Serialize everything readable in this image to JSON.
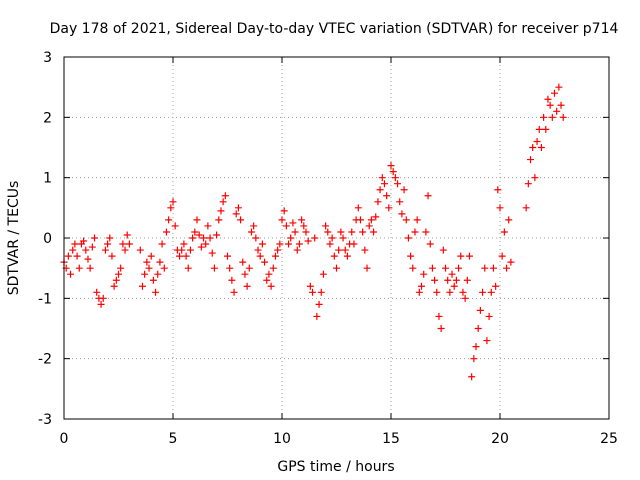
{
  "chart_data": {
    "type": "scatter",
    "title": "Day 178 of 2021, Sidereal Day-to-day VTEC variation (SDTVAR) for receiver p714",
    "xlabel": "GPS time / hours",
    "ylabel": "SDTVAR / TECUs",
    "xlim": [
      0,
      25
    ],
    "ylim": [
      -3,
      3
    ],
    "xticks": [
      "0",
      "5",
      "10",
      "15",
      "20",
      "25"
    ],
    "yticks": [
      "-3",
      "-2",
      "-1",
      "0",
      "1",
      "2",
      "3"
    ],
    "grid": true,
    "marker": "plus",
    "color": "#ff0000",
    "series": [
      {
        "name": "SDTVAR",
        "points": [
          [
            0.0,
            -0.4
          ],
          [
            0.1,
            -0.5
          ],
          [
            0.2,
            -0.3
          ],
          [
            0.3,
            -0.6
          ],
          [
            0.4,
            -0.2
          ],
          [
            0.5,
            -0.1
          ],
          [
            0.6,
            -0.3
          ],
          [
            0.7,
            -0.5
          ],
          [
            0.8,
            -0.1
          ],
          [
            0.9,
            -0.05
          ],
          [
            1.0,
            -0.2
          ],
          [
            1.1,
            -0.35
          ],
          [
            1.2,
            -0.5
          ],
          [
            1.3,
            -0.15
          ],
          [
            1.4,
            0.0
          ],
          [
            1.5,
            -0.9
          ],
          [
            1.6,
            -1.0
          ],
          [
            1.7,
            -1.1
          ],
          [
            1.8,
            -1.0
          ],
          [
            1.9,
            -0.2
          ],
          [
            2.0,
            -0.1
          ],
          [
            2.1,
            0.0
          ],
          [
            2.2,
            -0.3
          ],
          [
            2.3,
            -0.8
          ],
          [
            2.4,
            -0.7
          ],
          [
            2.5,
            -0.6
          ],
          [
            2.6,
            -0.5
          ],
          [
            2.7,
            -0.1
          ],
          [
            2.8,
            -0.2
          ],
          [
            2.9,
            0.05
          ],
          [
            3.0,
            -0.1
          ],
          [
            3.5,
            -0.2
          ],
          [
            3.6,
            -0.8
          ],
          [
            3.7,
            -0.6
          ],
          [
            3.8,
            -0.4
          ],
          [
            3.9,
            -0.5
          ],
          [
            4.0,
            -0.3
          ],
          [
            4.1,
            -0.7
          ],
          [
            4.2,
            -0.9
          ],
          [
            4.3,
            -0.6
          ],
          [
            4.4,
            -0.4
          ],
          [
            4.5,
            -0.1
          ],
          [
            4.6,
            -0.5
          ],
          [
            4.7,
            0.1
          ],
          [
            4.8,
            0.3
          ],
          [
            4.9,
            0.5
          ],
          [
            5.0,
            0.6
          ],
          [
            5.1,
            0.2
          ],
          [
            5.2,
            -0.2
          ],
          [
            5.3,
            -0.3
          ],
          [
            5.4,
            -0.2
          ],
          [
            5.5,
            -0.1
          ],
          [
            5.6,
            -0.3
          ],
          [
            5.7,
            -0.5
          ],
          [
            5.8,
            -0.2
          ],
          [
            5.9,
            0.0
          ],
          [
            6.0,
            0.1
          ],
          [
            6.1,
            0.3
          ],
          [
            6.2,
            0.05
          ],
          [
            6.3,
            -0.15
          ],
          [
            6.4,
            0.0
          ],
          [
            6.5,
            -0.1
          ],
          [
            6.6,
            0.2
          ],
          [
            6.7,
            0.0
          ],
          [
            6.8,
            -0.25
          ],
          [
            6.9,
            -0.5
          ],
          [
            7.0,
            0.05
          ],
          [
            7.1,
            0.3
          ],
          [
            7.2,
            0.45
          ],
          [
            7.3,
            0.6
          ],
          [
            7.4,
            0.7
          ],
          [
            7.5,
            -0.3
          ],
          [
            7.6,
            -0.5
          ],
          [
            7.7,
            -0.7
          ],
          [
            7.8,
            -0.9
          ],
          [
            7.9,
            0.4
          ],
          [
            8.0,
            0.5
          ],
          [
            8.1,
            0.3
          ],
          [
            8.2,
            -0.4
          ],
          [
            8.3,
            -0.6
          ],
          [
            8.4,
            -0.8
          ],
          [
            8.5,
            -0.5
          ],
          [
            8.6,
            0.1
          ],
          [
            8.7,
            0.2
          ],
          [
            8.8,
            0.0
          ],
          [
            8.9,
            -0.2
          ],
          [
            9.0,
            -0.3
          ],
          [
            9.1,
            -0.1
          ],
          [
            9.2,
            -0.4
          ],
          [
            9.3,
            -0.7
          ],
          [
            9.4,
            -0.6
          ],
          [
            9.5,
            -0.8
          ],
          [
            9.6,
            -0.5
          ],
          [
            9.7,
            -0.3
          ],
          [
            9.8,
            -0.2
          ],
          [
            9.9,
            -0.1
          ],
          [
            10.0,
            0.3
          ],
          [
            10.1,
            0.45
          ],
          [
            10.2,
            0.2
          ],
          [
            10.3,
            -0.1
          ],
          [
            10.4,
            0.0
          ],
          [
            10.5,
            0.25
          ],
          [
            10.6,
            0.1
          ],
          [
            10.7,
            -0.2
          ],
          [
            10.8,
            -0.1
          ],
          [
            10.9,
            0.3
          ],
          [
            11.0,
            0.2
          ],
          [
            11.1,
            0.1
          ],
          [
            11.2,
            -0.05
          ],
          [
            11.3,
            -0.8
          ],
          [
            11.4,
            -0.9
          ],
          [
            11.5,
            0.0
          ],
          [
            11.6,
            -1.3
          ],
          [
            11.7,
            -1.1
          ],
          [
            11.8,
            -0.9
          ],
          [
            11.9,
            -0.6
          ],
          [
            12.0,
            0.2
          ],
          [
            12.1,
            0.1
          ],
          [
            12.2,
            -0.1
          ],
          [
            12.3,
            0.0
          ],
          [
            12.4,
            -0.3
          ],
          [
            12.5,
            -0.5
          ],
          [
            12.6,
            -0.2
          ],
          [
            12.7,
            0.1
          ],
          [
            12.8,
            0.0
          ],
          [
            12.9,
            -0.2
          ],
          [
            13.0,
            -0.3
          ],
          [
            13.1,
            -0.1
          ],
          [
            13.2,
            0.1
          ],
          [
            13.3,
            -0.1
          ],
          [
            13.4,
            0.3
          ],
          [
            13.5,
            0.5
          ],
          [
            13.6,
            0.3
          ],
          [
            13.7,
            0.1
          ],
          [
            13.8,
            -0.2
          ],
          [
            13.9,
            -0.5
          ],
          [
            14.0,
            0.2
          ],
          [
            14.1,
            0.3
          ],
          [
            14.2,
            0.1
          ],
          [
            14.3,
            0.35
          ],
          [
            14.4,
            0.6
          ],
          [
            14.5,
            0.8
          ],
          [
            14.6,
            1.0
          ],
          [
            14.7,
            0.9
          ],
          [
            14.8,
            0.7
          ],
          [
            14.9,
            0.5
          ],
          [
            15.0,
            1.2
          ],
          [
            15.1,
            1.1
          ],
          [
            15.2,
            1.0
          ],
          [
            15.3,
            0.9
          ],
          [
            15.4,
            0.6
          ],
          [
            15.5,
            0.4
          ],
          [
            15.6,
            0.8
          ],
          [
            15.7,
            0.3
          ],
          [
            15.8,
            0.0
          ],
          [
            15.9,
            -0.3
          ],
          [
            16.0,
            -0.5
          ],
          [
            16.1,
            0.1
          ],
          [
            16.2,
            0.3
          ],
          [
            16.3,
            -0.9
          ],
          [
            16.4,
            -0.8
          ],
          [
            16.5,
            -0.6
          ],
          [
            16.6,
            0.1
          ],
          [
            16.7,
            0.7
          ],
          [
            16.8,
            -0.1
          ],
          [
            16.9,
            -0.5
          ],
          [
            17.0,
            -0.7
          ],
          [
            17.1,
            -0.9
          ],
          [
            17.2,
            -1.3
          ],
          [
            17.3,
            -1.5
          ],
          [
            17.4,
            -0.2
          ],
          [
            17.5,
            -0.5
          ],
          [
            17.6,
            -0.7
          ],
          [
            17.7,
            -0.9
          ],
          [
            17.8,
            -0.6
          ],
          [
            17.9,
            -0.8
          ],
          [
            18.0,
            -0.7
          ],
          [
            18.1,
            -0.5
          ],
          [
            18.2,
            -0.3
          ],
          [
            18.3,
            -0.9
          ],
          [
            18.4,
            -1.0
          ],
          [
            18.5,
            -0.7
          ],
          [
            18.6,
            -0.3
          ],
          [
            18.7,
            -2.3
          ],
          [
            18.8,
            -2.0
          ],
          [
            18.9,
            -1.8
          ],
          [
            19.0,
            -1.5
          ],
          [
            19.1,
            -1.2
          ],
          [
            19.2,
            -0.9
          ],
          [
            19.3,
            -0.5
          ],
          [
            19.4,
            -1.7
          ],
          [
            19.5,
            -1.3
          ],
          [
            19.6,
            -0.9
          ],
          [
            19.7,
            -0.5
          ],
          [
            19.8,
            -0.8
          ],
          [
            19.9,
            0.8
          ],
          [
            20.0,
            0.5
          ],
          [
            20.1,
            -0.3
          ],
          [
            20.2,
            0.1
          ],
          [
            20.3,
            -0.5
          ],
          [
            20.4,
            0.3
          ],
          [
            20.5,
            -0.4
          ],
          [
            21.2,
            0.5
          ],
          [
            21.3,
            0.9
          ],
          [
            21.4,
            1.3
          ],
          [
            21.5,
            1.5
          ],
          [
            21.6,
            1.0
          ],
          [
            21.7,
            1.6
          ],
          [
            21.8,
            1.8
          ],
          [
            21.9,
            1.5
          ],
          [
            22.0,
            2.0
          ],
          [
            22.1,
            1.8
          ],
          [
            22.2,
            2.3
          ],
          [
            22.3,
            2.2
          ],
          [
            22.4,
            2.0
          ],
          [
            22.5,
            2.4
          ],
          [
            22.6,
            2.1
          ],
          [
            22.7,
            2.5
          ],
          [
            22.8,
            2.2
          ],
          [
            22.9,
            2.0
          ]
        ]
      }
    ]
  }
}
